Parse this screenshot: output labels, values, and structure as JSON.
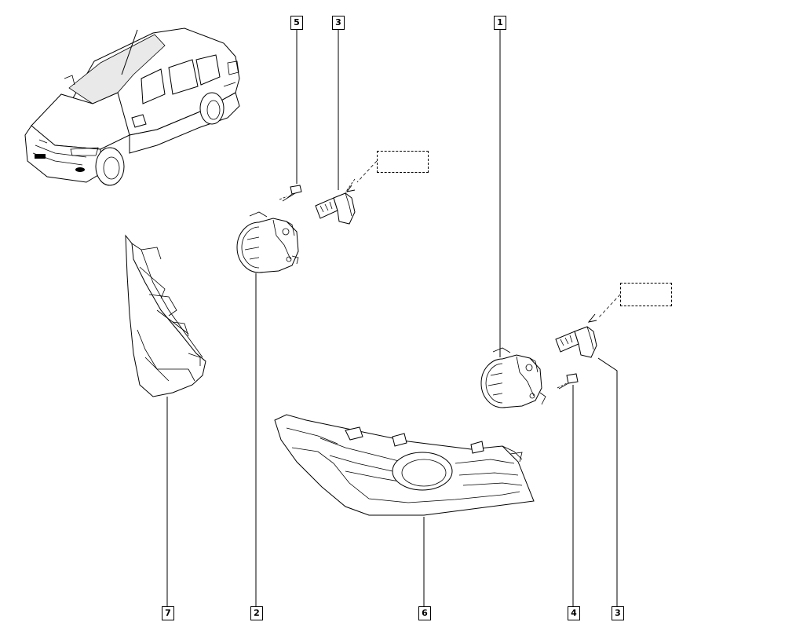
{
  "diagram": {
    "callouts": [
      {
        "id": "c5",
        "label": "5"
      },
      {
        "id": "c3a",
        "label": "3"
      },
      {
        "id": "c1",
        "label": "1"
      },
      {
        "id": "c7",
        "label": "7"
      },
      {
        "id": "c2",
        "label": "2"
      },
      {
        "id": "c6",
        "label": "6"
      },
      {
        "id": "c4",
        "label": "4"
      },
      {
        "id": "c3b",
        "label": "3"
      }
    ]
  }
}
